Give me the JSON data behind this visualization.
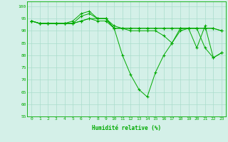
{
  "xlabel": "Humidité relative (%)",
  "background_color": "#d4f0e8",
  "line_color": "#00aa00",
  "grid_color": "#aaddcc",
  "ylim": [
    55,
    102
  ],
  "xlim": [
    -0.5,
    23.5
  ],
  "yticks": [
    55,
    60,
    65,
    70,
    75,
    80,
    85,
    90,
    95,
    100
  ],
  "xticks": [
    0,
    1,
    2,
    3,
    4,
    5,
    6,
    7,
    8,
    9,
    10,
    11,
    12,
    13,
    14,
    15,
    16,
    17,
    18,
    19,
    20,
    21,
    22,
    23
  ],
  "series": [
    [
      94,
      93,
      93,
      93,
      93,
      94,
      97,
      98,
      95,
      95,
      91,
      80,
      72,
      66,
      63,
      73,
      80,
      85,
      91,
      91,
      83,
      92,
      79,
      81
    ],
    [
      94,
      93,
      93,
      93,
      93,
      93,
      94,
      95,
      94,
      94,
      91,
      91,
      91,
      91,
      91,
      91,
      91,
      91,
      91,
      91,
      91,
      91,
      91,
      90
    ],
    [
      94,
      93,
      93,
      93,
      93,
      93,
      96,
      97,
      95,
      95,
      92,
      91,
      91,
      91,
      91,
      91,
      91,
      91,
      91,
      91,
      91,
      91,
      91,
      90
    ],
    [
      94,
      93,
      93,
      93,
      93,
      93,
      94,
      95,
      95,
      95,
      91,
      91,
      90,
      90,
      90,
      90,
      88,
      85,
      90,
      91,
      91,
      83,
      79,
      81
    ]
  ]
}
